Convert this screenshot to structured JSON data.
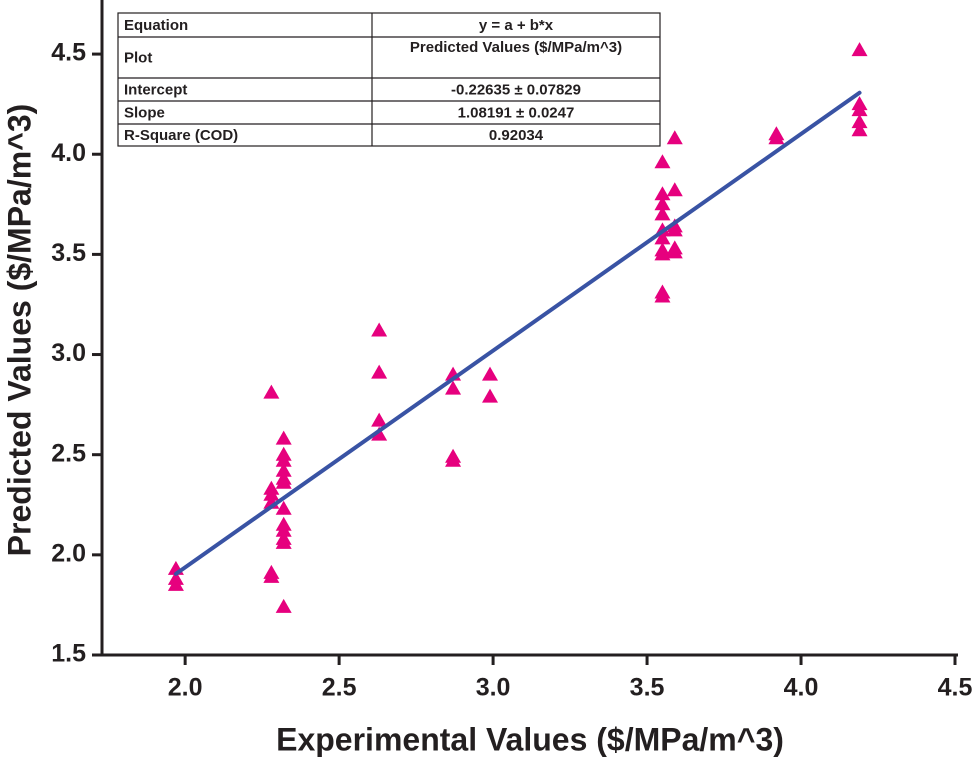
{
  "chart_data": {
    "type": "scatter",
    "x_label": "Experimental Values ($/MPa/m^3)",
    "y_label": "Predicted Values ($/MPa/m^3)",
    "color": "#e6007e",
    "x": [
      1.97,
      1.97,
      1.97,
      2.28,
      2.28,
      2.28,
      2.28,
      2.28,
      2.28,
      2.32,
      2.32,
      2.32,
      2.32,
      2.32,
      2.32,
      2.32,
      2.32,
      2.32,
      2.32,
      2.32,
      2.32,
      2.63,
      2.63,
      2.63,
      2.63,
      2.87,
      2.87,
      2.87,
      2.87,
      2.99,
      2.99,
      3.55,
      3.55,
      3.55,
      3.55,
      3.55,
      3.55,
      3.55,
      3.55,
      3.55,
      3.55,
      3.59,
      3.59,
      3.59,
      3.59,
      3.59,
      3.59,
      3.92,
      3.92,
      4.19,
      4.19,
      4.19,
      4.19,
      4.19
    ],
    "values": [
      1.93,
      1.88,
      1.85,
      2.81,
      2.33,
      2.3,
      2.26,
      1.91,
      1.89,
      2.58,
      2.5,
      2.47,
      2.42,
      2.38,
      2.36,
      2.23,
      2.15,
      2.12,
      2.08,
      2.06,
      1.74,
      3.12,
      2.91,
      2.67,
      2.6,
      2.9,
      2.83,
      2.49,
      2.47,
      2.9,
      2.79,
      3.96,
      3.8,
      3.75,
      3.7,
      3.62,
      3.58,
      3.52,
      3.5,
      3.31,
      3.29,
      4.08,
      3.82,
      3.64,
      3.62,
      3.53,
      3.51,
      4.1,
      4.08,
      4.52,
      4.25,
      4.22,
      4.16,
      4.12
    ],
    "fit": {
      "intercept": -0.22635,
      "slope": 1.08191,
      "x": [
        1.97,
        4.19
      ],
      "color": "#3953a4"
    },
    "xlim": [
      1.73,
      4.5
    ],
    "ylim": [
      1.5,
      4.77
    ],
    "xticks": [
      {
        "value": 2,
        "label": "2.0"
      },
      2.5,
      {
        "value": 3,
        "label": "3.0"
      },
      3.5,
      {
        "value": 4,
        "label": "4.0"
      },
      4.5
    ],
    "yticks": [
      1.5,
      {
        "value": 2,
        "label": "2.0"
      },
      2.5,
      {
        "value": 3,
        "label": "3.0"
      },
      3.5,
      {
        "value": 4,
        "label": "4.0"
      },
      4.5
    ],
    "stats_table": [
      [
        "Equation",
        "y = a + b*x"
      ],
      [
        "Plot",
        "Predicted Values ($/MPa/m^3)"
      ],
      [
        "Intercept",
        "-0.22635 ± 0.07829"
      ],
      [
        "Slope",
        "1.08191 ± 0.0247"
      ],
      [
        "R-Square (COD)",
        "0.92034"
      ]
    ]
  }
}
